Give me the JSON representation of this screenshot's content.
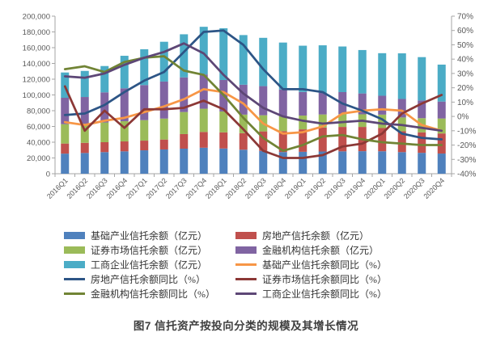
{
  "figure": {
    "caption": "图7  信托资产按投向分类的规模及其增长情况"
  },
  "chart_data": {
    "type": "combo: stacked bar (left axis) + line (right axis)",
    "categories": [
      "2016Q1",
      "2016Q2",
      "2016Q3",
      "2016Q4",
      "2017Q1",
      "2017Q2",
      "2017Q3",
      "2017Q4",
      "2018Q1",
      "2018Q2",
      "2018Q3",
      "2018Q4",
      "2019Q1",
      "2019Q2",
      "2019Q3",
      "2019Q4",
      "2020Q1",
      "2020Q2",
      "2020Q3",
      "2020Q4"
    ],
    "left_axis": {
      "min": 0,
      "max": 200000,
      "step": 20000
    },
    "right_axis": {
      "min": -40,
      "max": 70,
      "step": 10,
      "suffix": "%"
    },
    "legend_position": "bottom",
    "grid": "off",
    "axis_text_color": "#595959",
    "axis_line_color": "#A6A6A6",
    "bar_series": [
      {
        "name": "基础产业信托余额（亿元）",
        "color": "#4F81BD",
        "values": [
          25500,
          26300,
          27400,
          28400,
          29700,
          30800,
          31800,
          33000,
          32000,
          30500,
          29000,
          27500,
          27800,
          28200,
          28400,
          28600,
          28500,
          27400,
          26500,
          25600
        ]
      },
      {
        "name": "房地产信托余额（亿元）",
        "color": "#C0504D",
        "values": [
          12800,
          12900,
          12600,
          12600,
          12300,
          12600,
          18500,
          20000,
          20500,
          21000,
          24700,
          26500,
          28500,
          30500,
          31000,
          30800,
          29500,
          26500,
          26000,
          25500
        ]
      },
      {
        "name": "证券市场信托余额（亿元）",
        "color": "#9BBB59",
        "values": [
          24600,
          24400,
          25000,
          25700,
          26000,
          26600,
          28000,
          29500,
          26500,
          23500,
          20500,
          19000,
          17500,
          16500,
          16200,
          16000,
          17000,
          17500,
          18000,
          19000
        ]
      },
      {
        "name": "金融机构信托余额（亿元）",
        "color": "#8064A2",
        "values": [
          33500,
          33800,
          38300,
          41700,
          44500,
          47000,
          44000,
          43500,
          40000,
          38000,
          37000,
          34000,
          30000,
          27500,
          28000,
          26500,
          24000,
          23500,
          22500,
          21500
        ]
      },
      {
        "name": "工商企业信托余额（亿元）",
        "color": "#4BACC6",
        "values": [
          32100,
          33100,
          33400,
          41300,
          45500,
          50500,
          54700,
          60500,
          65600,
          63000,
          61300,
          59500,
          58700,
          60300,
          57900,
          55100,
          54000,
          57900,
          55000,
          46900
        ]
      }
    ],
    "line_series": [
      {
        "name": "基础产业信托余额同比（%）",
        "color": "#F79646",
        "values": [
          -4,
          -6,
          -3,
          -1,
          3,
          7,
          12,
          19,
          17,
          9,
          -5,
          -12,
          -11,
          -7,
          2,
          4,
          5,
          4,
          -6,
          -10
        ]
      },
      {
        "name": "房地产信托余额同比（%）",
        "color": "#2D5586",
        "values": [
          1,
          2,
          8,
          17,
          25,
          31,
          45,
          59,
          60,
          50,
          33,
          19,
          19,
          17,
          9,
          4,
          -2,
          -12,
          -15,
          -16
        ]
      },
      {
        "name": "证券市场信托余额同比（%）",
        "color": "#8C3836",
        "values": [
          21,
          -10,
          4,
          -8,
          5,
          5,
          6,
          11,
          5,
          -9,
          -24,
          -29,
          -29,
          -27,
          -21,
          -19,
          -12,
          2,
          9,
          15
        ]
      },
      {
        "name": "金融机构信托余额同比（%）",
        "color": "#718435",
        "values": [
          33,
          35,
          31,
          38,
          41,
          42,
          32,
          29,
          15,
          -1,
          -15,
          -24,
          -20,
          -14,
          -13,
          -16,
          -18,
          -19,
          -20,
          -20
        ]
      },
      {
        "name": "工商企业信托余额同比（%）",
        "color": "#5D4776",
        "values": [
          28,
          27,
          30,
          36,
          41,
          45,
          51,
          44,
          29,
          16,
          6,
          0,
          -3,
          -5,
          -4,
          -3,
          -5,
          -6,
          -8,
          -10
        ]
      }
    ]
  }
}
